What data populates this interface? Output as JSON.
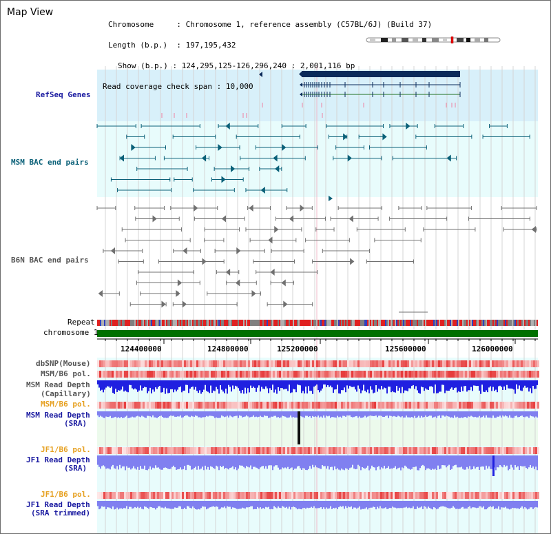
{
  "window_title": "Map View",
  "info": {
    "chromosome_label": "Chromosome",
    "chromosome_value": "Chromosome 1, reference assembly (C57BL/6J) (Build 37)",
    "length_label": "Length (b.p.)",
    "length_value": "197,195,432",
    "show_label": "Show (b.p.)",
    "show_value": "124,295,125-126,296,240 : 2,001,116 bp",
    "span_label": "Read coverage check span",
    "span_value": "10,000"
  },
  "tracks": {
    "refseq": "RefSeq Genes",
    "msm_bac": "MSM BAC end pairs",
    "b6n_bac": "B6N BAC end pairs",
    "repeat": "Repeat",
    "chromosome": "chromosome 1",
    "dbsnp": "dbSNP(Mouse)",
    "msm_b6_pol_1": "MSM/B6 pol.",
    "msm_depth_cap_1": "MSM Read Depth",
    "msm_depth_cap_2": "(Capillary)",
    "msm_b6_pol_2": "MSM/B6 pol.",
    "msm_depth_sra_1": "MSM Read Depth",
    "msm_depth_sra_2": "(SRA)",
    "jf1_b6_pol_1": "JF1/B6 pol.",
    "jf1_depth_1": "JF1 Read Depth",
    "jf1_depth_2": "(SRA)",
    "jf1_b6_pol_2": "JF1/B6 pol.",
    "jf1_trim_1": "JF1 Read Depth",
    "jf1_trim_2": "(SRA trimmed)"
  },
  "axis": {
    "ticks": [
      "124400000",
      "124800000",
      "125200000",
      "125600000",
      "126000000"
    ]
  },
  "colors": {
    "refseq_bg": "#d8f0fa",
    "track_bg": "#e8fcfc",
    "gene_dark": "#0a2a5a",
    "msm_pair": "#0a6078",
    "b6n_pair": "#707070",
    "chromosome_bar": "#007000",
    "depth_blue": "#2020e0",
    "depth_light": "#8080f0",
    "snp_red": "#e03030"
  }
}
